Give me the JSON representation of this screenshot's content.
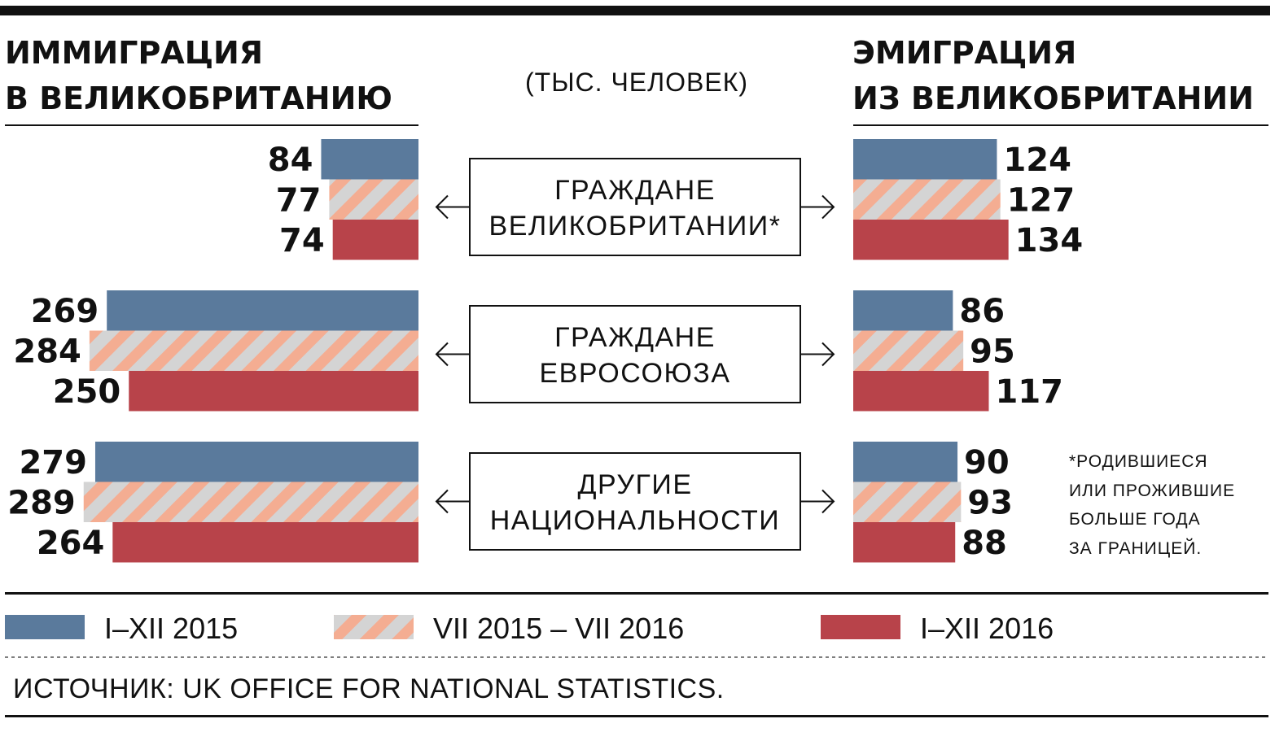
{
  "header": {
    "left_title": [
      "ИММИГРАЦИЯ",
      "В ВЕЛИКОБРИТАНИЮ"
    ],
    "right_title": [
      "ЭМИГРАЦИЯ",
      "ИЗ ВЕЛИКОБРИТАНИИ"
    ],
    "unit": "(ТЫС. ЧЕЛОВЕК)"
  },
  "colors": {
    "series_2015": "#5a7a9c",
    "series_mid_stripe_a": "#f4ad92",
    "series_mid_stripe_b": "#d4d4d4",
    "series_2016": "#b8434a"
  },
  "chart_data": {
    "type": "bar",
    "orientation": "horizontal",
    "categories": [
      [
        "ГРАЖДАНЕ",
        "ВЕЛИКОБРИТАНИИ*"
      ],
      [
        "ГРАЖДАНЕ",
        "ЕВРОСОЮЗА"
      ],
      [
        "ДРУГИЕ",
        "НАЦИОНАЛЬНОСТИ"
      ]
    ],
    "series": [
      {
        "name": "I–XII 2015",
        "immigration": [
          84,
          269,
          279
        ],
        "emigration": [
          124,
          86,
          90
        ]
      },
      {
        "name": "VII 2015 – VII 2016",
        "immigration": [
          77,
          284,
          289
        ],
        "emigration": [
          127,
          95,
          93
        ]
      },
      {
        "name": "I–XII 2016",
        "immigration": [
          74,
          250,
          264
        ],
        "emigration": [
          134,
          117,
          88
        ]
      }
    ]
  },
  "footnote": [
    "*РОДИВШИЕСЯ",
    "ИЛИ ПРОЖИВШИЕ",
    "БОЛЬШЕ ГОДА",
    "ЗА ГРАНИЦЕЙ."
  ],
  "source": "ИСТОЧНИК: UK OFFICE FOR NATIONAL STATISTICS."
}
